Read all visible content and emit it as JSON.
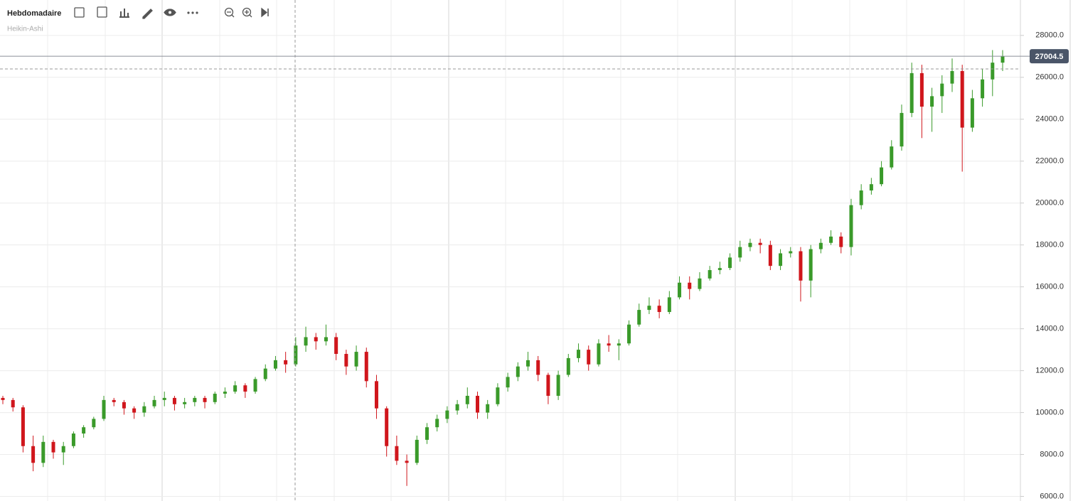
{
  "chart_data": {
    "type": "candlestick",
    "interval": "Hebdomadaire",
    "chart_style": "Heikin-Ashi",
    "up_color": "#3a9a2a",
    "down_color": "#d0161c",
    "grid": true,
    "ylim": [
      5780,
      29690
    ],
    "yticks": [
      {
        "value": 6000,
        "label": "6000.0"
      },
      {
        "value": 8000,
        "label": "8000.0"
      },
      {
        "value": 10000,
        "label": "10000.0"
      },
      {
        "value": 12000,
        "label": "12000.0"
      },
      {
        "value": 14000,
        "label": "14000.0"
      },
      {
        "value": 16000,
        "label": "16000.0"
      },
      {
        "value": 18000,
        "label": "18000.0"
      },
      {
        "value": 20000,
        "label": "20000.0"
      },
      {
        "value": 22000,
        "label": "22000.0"
      },
      {
        "value": 24000,
        "label": "24000.0"
      },
      {
        "value": 26000,
        "label": "26000.0"
      },
      {
        "value": 28000,
        "label": "28000.0"
      }
    ],
    "last_price": 27004.5,
    "open": [
      10700,
      10600,
      10250,
      8400,
      7600,
      8600,
      8100,
      8400,
      9000,
      9300,
      9700,
      10600,
      10500,
      10200,
      10000,
      10300,
      10600,
      10700,
      10400,
      10500,
      10700,
      10500,
      10900,
      11000,
      11300,
      11000,
      11600,
      12100,
      12500,
      12300,
      13200,
      13600,
      13400,
      13600,
      12800,
      12200,
      12900,
      11500,
      10200,
      8400,
      7700,
      7600,
      8700,
      9300,
      9700,
      10100,
      10400,
      10800,
      10000,
      10400,
      11200,
      11700,
      12200,
      12500,
      11800,
      10800,
      11800,
      12600,
      13000,
      12300,
      13300,
      13200,
      13300,
      14200,
      14900,
      15100,
      14800,
      15500,
      16200,
      15900,
      16400,
      16800,
      16900,
      17400,
      17900,
      18100,
      18000,
      17000,
      17600,
      17700,
      16300,
      17800,
      18100,
      18400,
      17900,
      19900,
      20600,
      20900,
      21700,
      22700,
      24300,
      26200,
      24600,
      25100,
      25700,
      26300,
      23600,
      25000,
      25900,
      26700
    ],
    "high": [
      10800,
      10700,
      10350,
      8900,
      8900,
      8700,
      8600,
      9100,
      9400,
      9800,
      10800,
      10700,
      10600,
      10300,
      10500,
      10800,
      11000,
      10800,
      10700,
      10800,
      10800,
      11000,
      11200,
      11500,
      11400,
      11700,
      12300,
      12700,
      12900,
      13600,
      14100,
      13800,
      14200,
      13800,
      13000,
      13200,
      13100,
      11800,
      10300,
      8900,
      8000,
      8900,
      9500,
      9900,
      10300,
      10600,
      11200,
      11000,
      10600,
      11400,
      11900,
      12400,
      12900,
      12700,
      11900,
      12000,
      12800,
      13300,
      13200,
      13500,
      13700,
      13500,
      14400,
      15200,
      15500,
      15400,
      15800,
      16500,
      16500,
      16700,
      17000,
      17200,
      17600,
      18200,
      18300,
      18300,
      18200,
      17800,
      17900,
      17900,
      18000,
      18300,
      18700,
      18600,
      20200,
      20900,
      21200,
      22000,
      23000,
      24700,
      26700,
      26600,
      25500,
      26100,
      26900,
      26600,
      25400,
      26400,
      27300,
      27300
    ],
    "low": [
      10400,
      10050,
      8100,
      7200,
      7400,
      7800,
      7500,
      8300,
      8800,
      9200,
      9600,
      10300,
      9900,
      9700,
      9800,
      10200,
      10300,
      10100,
      10200,
      10300,
      10200,
      10400,
      10700,
      10900,
      10700,
      10900,
      11500,
      12000,
      11900,
      12200,
      12900,
      13000,
      13200,
      12500,
      11800,
      12000,
      11200,
      9700,
      7900,
      7500,
      6500,
      7500,
      8500,
      9100,
      9500,
      9900,
      10200,
      9700,
      9700,
      10300,
      11000,
      11500,
      12000,
      11500,
      10400,
      10600,
      11700,
      12400,
      12000,
      12200,
      12900,
      12500,
      13200,
      14100,
      14700,
      14500,
      14700,
      15400,
      15400,
      15800,
      16300,
      16600,
      16800,
      17200,
      17700,
      17600,
      16800,
      16800,
      17400,
      15300,
      15500,
      17600,
      18000,
      17600,
      17500,
      19700,
      20400,
      20800,
      21600,
      22500,
      24100,
      23100,
      23400,
      24300,
      25300,
      21500,
      23400,
      24600,
      25100,
      26300
    ],
    "close": [
      10600,
      10250,
      8400,
      7600,
      8600,
      8100,
      8400,
      9000,
      9300,
      9700,
      10600,
      10500,
      10200,
      10000,
      10300,
      10600,
      10700,
      10400,
      10500,
      10700,
      10500,
      10900,
      11000,
      11300,
      11000,
      11600,
      12100,
      12500,
      12300,
      13200,
      13600,
      13400,
      13600,
      12800,
      12200,
      12900,
      11500,
      10200,
      8400,
      7700,
      7600,
      8700,
      9300,
      9700,
      10100,
      10400,
      10800,
      10000,
      10400,
      11200,
      11700,
      12200,
      12500,
      11800,
      10800,
      11800,
      12600,
      13000,
      12300,
      13300,
      13200,
      13300,
      14200,
      14900,
      15100,
      14800,
      15500,
      16200,
      15900,
      16400,
      16800,
      16900,
      17400,
      17900,
      18100,
      18000,
      17000,
      17600,
      17700,
      16300,
      17800,
      18100,
      18400,
      17900,
      19900,
      20600,
      20900,
      21700,
      22700,
      24300,
      26200,
      24600,
      25100,
      25700,
      26300,
      23600,
      25000,
      25900,
      26700,
      27000
    ]
  }
}
